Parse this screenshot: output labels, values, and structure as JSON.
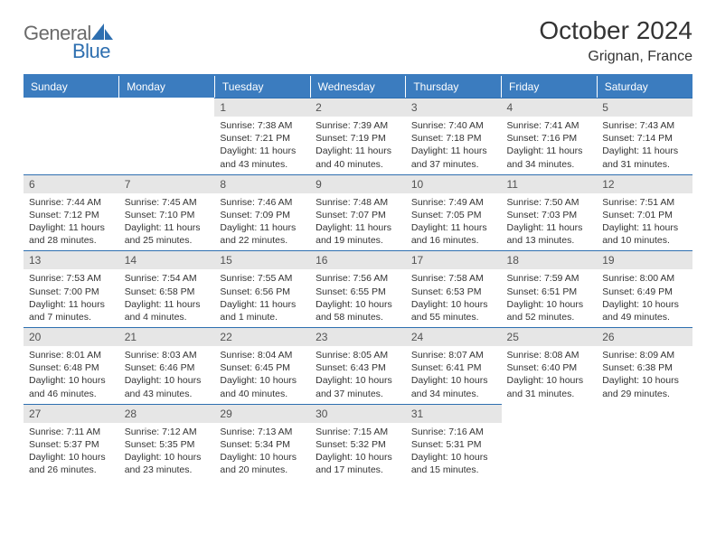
{
  "brand": {
    "part1": "General",
    "part2": "Blue"
  },
  "title": "October 2024",
  "subtitle": "Grignan, France",
  "colors": {
    "header_bg": "#3b7cbf",
    "header_fg": "#ffffff",
    "rule": "#3b7cbf",
    "daynum_bg": "#e6e6e6",
    "daynum_fg": "#525252",
    "body_text": "#333333",
    "brand_gray": "#6a6a6a",
    "brand_blue": "#2e6fb0",
    "page_bg": "#ffffff"
  },
  "typography": {
    "title_fontsize": 28,
    "subtitle_fontsize": 16,
    "dayhdr_fontsize": 12,
    "cell_fontsize": 10.5,
    "logo_fontsize": 22
  },
  "weekday_headers": [
    "Sunday",
    "Monday",
    "Tuesday",
    "Wednesday",
    "Thursday",
    "Friday",
    "Saturday"
  ],
  "weeks": [
    [
      {
        "empty": true
      },
      {
        "empty": true
      },
      {
        "day": "1",
        "sunrise": "Sunrise: 7:38 AM",
        "sunset": "Sunset: 7:21 PM",
        "daylight": "Daylight: 11 hours and 43 minutes."
      },
      {
        "day": "2",
        "sunrise": "Sunrise: 7:39 AM",
        "sunset": "Sunset: 7:19 PM",
        "daylight": "Daylight: 11 hours and 40 minutes."
      },
      {
        "day": "3",
        "sunrise": "Sunrise: 7:40 AM",
        "sunset": "Sunset: 7:18 PM",
        "daylight": "Daylight: 11 hours and 37 minutes."
      },
      {
        "day": "4",
        "sunrise": "Sunrise: 7:41 AM",
        "sunset": "Sunset: 7:16 PM",
        "daylight": "Daylight: 11 hours and 34 minutes."
      },
      {
        "day": "5",
        "sunrise": "Sunrise: 7:43 AM",
        "sunset": "Sunset: 7:14 PM",
        "daylight": "Daylight: 11 hours and 31 minutes."
      }
    ],
    [
      {
        "day": "6",
        "sunrise": "Sunrise: 7:44 AM",
        "sunset": "Sunset: 7:12 PM",
        "daylight": "Daylight: 11 hours and 28 minutes."
      },
      {
        "day": "7",
        "sunrise": "Sunrise: 7:45 AM",
        "sunset": "Sunset: 7:10 PM",
        "daylight": "Daylight: 11 hours and 25 minutes."
      },
      {
        "day": "8",
        "sunrise": "Sunrise: 7:46 AM",
        "sunset": "Sunset: 7:09 PM",
        "daylight": "Daylight: 11 hours and 22 minutes."
      },
      {
        "day": "9",
        "sunrise": "Sunrise: 7:48 AM",
        "sunset": "Sunset: 7:07 PM",
        "daylight": "Daylight: 11 hours and 19 minutes."
      },
      {
        "day": "10",
        "sunrise": "Sunrise: 7:49 AM",
        "sunset": "Sunset: 7:05 PM",
        "daylight": "Daylight: 11 hours and 16 minutes."
      },
      {
        "day": "11",
        "sunrise": "Sunrise: 7:50 AM",
        "sunset": "Sunset: 7:03 PM",
        "daylight": "Daylight: 11 hours and 13 minutes."
      },
      {
        "day": "12",
        "sunrise": "Sunrise: 7:51 AM",
        "sunset": "Sunset: 7:01 PM",
        "daylight": "Daylight: 11 hours and 10 minutes."
      }
    ],
    [
      {
        "day": "13",
        "sunrise": "Sunrise: 7:53 AM",
        "sunset": "Sunset: 7:00 PM",
        "daylight": "Daylight: 11 hours and 7 minutes."
      },
      {
        "day": "14",
        "sunrise": "Sunrise: 7:54 AM",
        "sunset": "Sunset: 6:58 PM",
        "daylight": "Daylight: 11 hours and 4 minutes."
      },
      {
        "day": "15",
        "sunrise": "Sunrise: 7:55 AM",
        "sunset": "Sunset: 6:56 PM",
        "daylight": "Daylight: 11 hours and 1 minute."
      },
      {
        "day": "16",
        "sunrise": "Sunrise: 7:56 AM",
        "sunset": "Sunset: 6:55 PM",
        "daylight": "Daylight: 10 hours and 58 minutes."
      },
      {
        "day": "17",
        "sunrise": "Sunrise: 7:58 AM",
        "sunset": "Sunset: 6:53 PM",
        "daylight": "Daylight: 10 hours and 55 minutes."
      },
      {
        "day": "18",
        "sunrise": "Sunrise: 7:59 AM",
        "sunset": "Sunset: 6:51 PM",
        "daylight": "Daylight: 10 hours and 52 minutes."
      },
      {
        "day": "19",
        "sunrise": "Sunrise: 8:00 AM",
        "sunset": "Sunset: 6:49 PM",
        "daylight": "Daylight: 10 hours and 49 minutes."
      }
    ],
    [
      {
        "day": "20",
        "sunrise": "Sunrise: 8:01 AM",
        "sunset": "Sunset: 6:48 PM",
        "daylight": "Daylight: 10 hours and 46 minutes."
      },
      {
        "day": "21",
        "sunrise": "Sunrise: 8:03 AM",
        "sunset": "Sunset: 6:46 PM",
        "daylight": "Daylight: 10 hours and 43 minutes."
      },
      {
        "day": "22",
        "sunrise": "Sunrise: 8:04 AM",
        "sunset": "Sunset: 6:45 PM",
        "daylight": "Daylight: 10 hours and 40 minutes."
      },
      {
        "day": "23",
        "sunrise": "Sunrise: 8:05 AM",
        "sunset": "Sunset: 6:43 PM",
        "daylight": "Daylight: 10 hours and 37 minutes."
      },
      {
        "day": "24",
        "sunrise": "Sunrise: 8:07 AM",
        "sunset": "Sunset: 6:41 PM",
        "daylight": "Daylight: 10 hours and 34 minutes."
      },
      {
        "day": "25",
        "sunrise": "Sunrise: 8:08 AM",
        "sunset": "Sunset: 6:40 PM",
        "daylight": "Daylight: 10 hours and 31 minutes."
      },
      {
        "day": "26",
        "sunrise": "Sunrise: 8:09 AM",
        "sunset": "Sunset: 6:38 PM",
        "daylight": "Daylight: 10 hours and 29 minutes."
      }
    ],
    [
      {
        "day": "27",
        "sunrise": "Sunrise: 7:11 AM",
        "sunset": "Sunset: 5:37 PM",
        "daylight": "Daylight: 10 hours and 26 minutes."
      },
      {
        "day": "28",
        "sunrise": "Sunrise: 7:12 AM",
        "sunset": "Sunset: 5:35 PM",
        "daylight": "Daylight: 10 hours and 23 minutes."
      },
      {
        "day": "29",
        "sunrise": "Sunrise: 7:13 AM",
        "sunset": "Sunset: 5:34 PM",
        "daylight": "Daylight: 10 hours and 20 minutes."
      },
      {
        "day": "30",
        "sunrise": "Sunrise: 7:15 AM",
        "sunset": "Sunset: 5:32 PM",
        "daylight": "Daylight: 10 hours and 17 minutes."
      },
      {
        "day": "31",
        "sunrise": "Sunrise: 7:16 AM",
        "sunset": "Sunset: 5:31 PM",
        "daylight": "Daylight: 10 hours and 15 minutes."
      },
      {
        "empty": true
      },
      {
        "empty": true
      }
    ]
  ]
}
